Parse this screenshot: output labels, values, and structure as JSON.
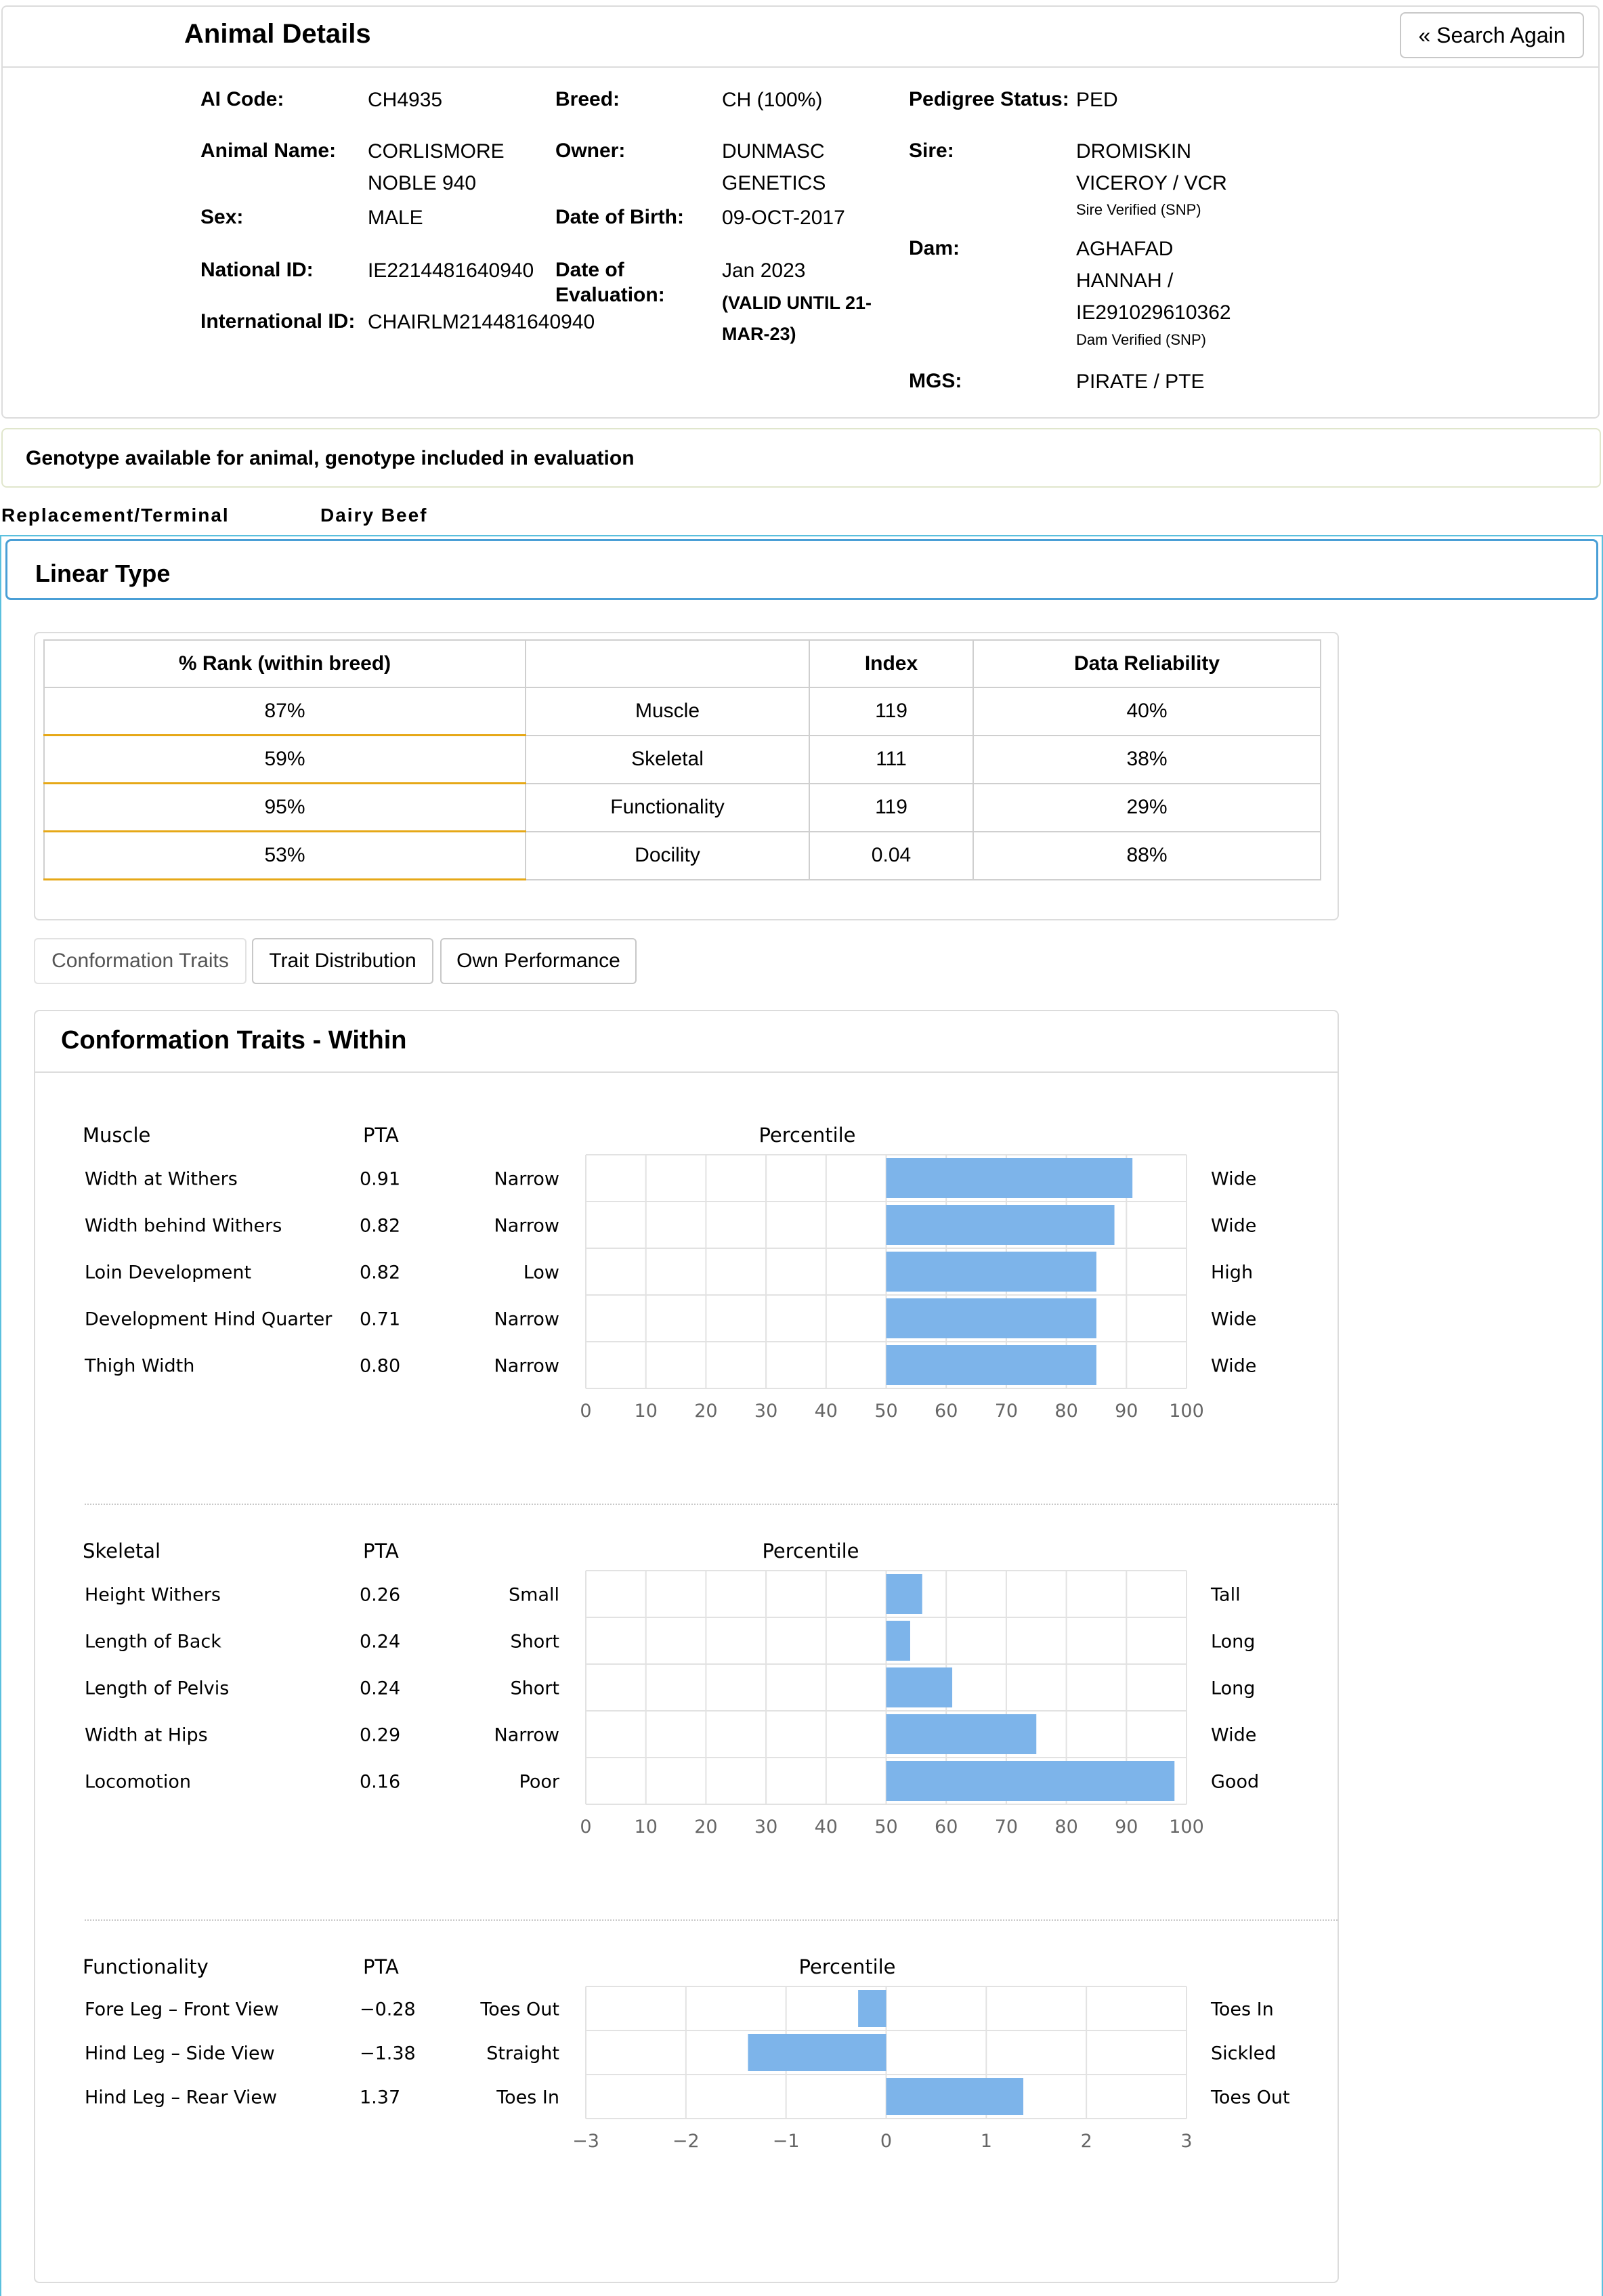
{
  "details": {
    "title": "Animal Details",
    "search_again": "« Search Again",
    "ai_code_label": "AI Code:",
    "ai_code": "CH4935",
    "breed_label": "Breed:",
    "breed": "CH (100%)",
    "pedigree_label": "Pedigree Status:",
    "pedigree": "PED",
    "name_label": "Animal Name:",
    "name_line1": "CORLISMORE",
    "name_line2": "NOBLE 940",
    "owner_label": "Owner:",
    "owner_line1": "DUNMASC",
    "owner_line2": "GENETICS",
    "sire_label": "Sire:",
    "sire_line1": "DROMISKIN",
    "sire_line2": "VICEROY / VCR",
    "sire_verified": "Sire Verified (SNP)",
    "sex_label": "Sex:",
    "sex": "MALE",
    "dob_label": "Date of Birth:",
    "dob": "09-OCT-2017",
    "dam_label": "Dam:",
    "dam_line1": "AGHAFAD",
    "dam_line2": "HANNAH /",
    "dam_line3": "IE291029610362",
    "dam_verified": "Dam Verified (SNP)",
    "national_id_label": "National ID:",
    "national_id": "IE2214481640940",
    "eval_label_1": "Date of",
    "eval_label_2": "Evaluation:",
    "eval": "Jan 2023",
    "valid_1": "(VALID UNTIL 21-",
    "valid_2": "MAR-23)",
    "intl_id_label": "International ID:",
    "intl_id": "CHAIRLM214481640940",
    "mgs_label": "MGS:",
    "mgs": "PIRATE / PTE"
  },
  "genotype_note": "Genotype available for animal, genotype included in evaluation",
  "sections": {
    "replacement": "Replacement/Terminal",
    "dairy": "Dairy Beef"
  },
  "linear_type": {
    "title": "Linear Type",
    "headers": [
      "% Rank (within breed)",
      "",
      "Index",
      "Data Reliability"
    ],
    "rows": [
      {
        "rank": "87%",
        "trait": "Muscle",
        "index": "119",
        "reliability": "40%"
      },
      {
        "rank": "59%",
        "trait": "Skeletal",
        "index": "111",
        "reliability": "38%"
      },
      {
        "rank": "95%",
        "trait": "Functionality",
        "index": "119",
        "reliability": "29%"
      },
      {
        "rank": "53%",
        "trait": "Docility",
        "index": "0.04",
        "reliability": "88%"
      }
    ]
  },
  "buttons": {
    "conformation": "Conformation Traits",
    "distribution": "Trait Distribution",
    "own": "Own Performance"
  },
  "conformation_title": "Conformation Traits - Within",
  "chart_data": [
    {
      "type": "bar",
      "orientation": "horizontal",
      "group": "Muscle",
      "pta_header": "PTA",
      "title": "Percentile",
      "xlim": [
        0,
        100
      ],
      "ticks": [
        0,
        10,
        20,
        30,
        40,
        50,
        60,
        70,
        80,
        90,
        100
      ],
      "baseline": 50,
      "rows": [
        {
          "trait": "Width at Withers",
          "pta": "0.91",
          "low": "Narrow",
          "high": "Wide",
          "value": 91
        },
        {
          "trait": "Width behind Withers",
          "pta": "0.82",
          "low": "Narrow",
          "high": "Wide",
          "value": 88
        },
        {
          "trait": "Loin Development",
          "pta": "0.82",
          "low": "Low",
          "high": "High",
          "value": 85
        },
        {
          "trait": "Development Hind Quarter",
          "pta": "0.71",
          "low": "Narrow",
          "high": "Wide",
          "value": 85
        },
        {
          "trait": "Thigh Width",
          "pta": "0.80",
          "low": "Narrow",
          "high": "Wide",
          "value": 85
        }
      ]
    },
    {
      "type": "bar",
      "orientation": "horizontal",
      "group": "Skeletal",
      "pta_header": "PTA",
      "title": "Percentile",
      "xlim": [
        0,
        100
      ],
      "ticks": [
        0,
        10,
        20,
        30,
        40,
        50,
        60,
        70,
        80,
        90,
        100
      ],
      "baseline": 50,
      "rows": [
        {
          "trait": "Height Withers",
          "pta": "0.26",
          "low": "Small",
          "high": "Tall",
          "value": 56
        },
        {
          "trait": "Length of Back",
          "pta": "0.24",
          "low": "Short",
          "high": "Long",
          "value": 54
        },
        {
          "trait": "Length of Pelvis",
          "pta": "0.24",
          "low": "Short",
          "high": "Long",
          "value": 61
        },
        {
          "trait": "Width at Hips",
          "pta": "0.29",
          "low": "Narrow",
          "high": "Wide",
          "value": 75
        },
        {
          "trait": "Locomotion",
          "pta": "0.16",
          "low": "Poor",
          "high": "Good",
          "value": 98
        }
      ]
    },
    {
      "type": "bar",
      "orientation": "horizontal",
      "group": "Functionality",
      "pta_header": "PTA",
      "title": "Percentile",
      "xlim": [
        -3,
        3
      ],
      "ticks": [
        -3,
        -2,
        -1,
        0,
        1,
        2,
        3
      ],
      "tick_labels": [
        "−3",
        "−2",
        "−1",
        "0",
        "1",
        "2",
        "3"
      ],
      "baseline": 0,
      "rows": [
        {
          "trait": "Fore Leg – Front View",
          "pta": "−0.28",
          "low": "Toes Out",
          "high": "Toes In",
          "value": -0.28
        },
        {
          "trait": "Hind Leg – Side View",
          "pta": "−1.38",
          "low": "Straight",
          "high": "Sickled",
          "value": -1.38
        },
        {
          "trait": "Hind Leg – Rear View",
          "pta": "1.37",
          "low": "Toes In",
          "high": "Toes Out",
          "value": 1.37
        }
      ]
    }
  ]
}
